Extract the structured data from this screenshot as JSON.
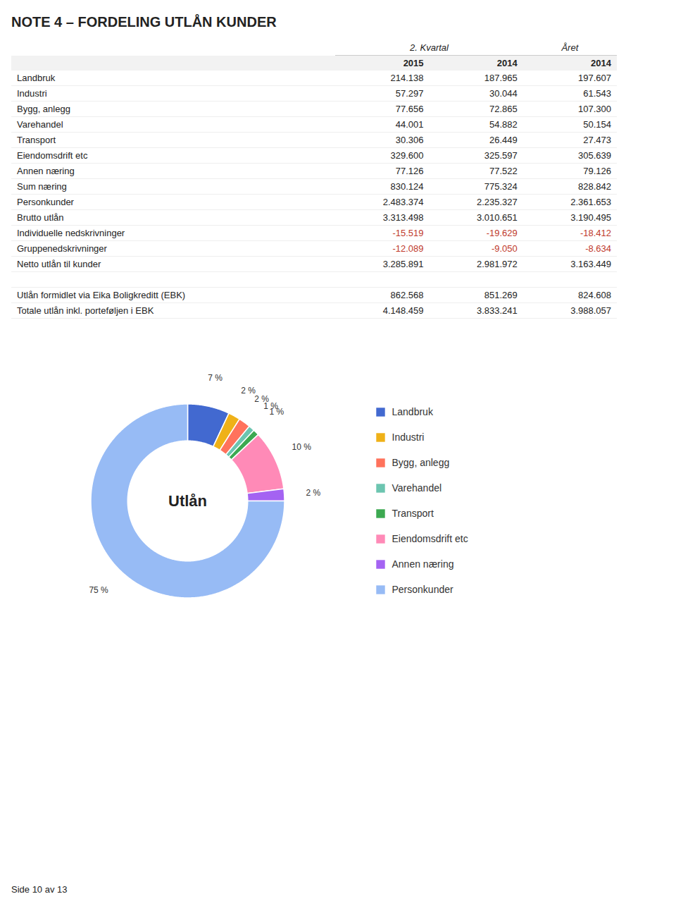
{
  "chart_data": [
    {
      "type": "table",
      "title": "NOTE 4 – FORDELING UTLÅN KUNDER",
      "categories": [
        "Landbruk",
        "Industri",
        "Bygg, anlegg",
        "Varehandel",
        "Transport",
        "Eiendomsdrift etc",
        "Annen næring",
        "Sum næring",
        "Personkunder",
        "Brutto utlån",
        "Individuelle nedskrivninger",
        "Gruppenedskrivninger",
        "Netto utlån til kunder",
        null,
        "Utlån formidlet via Eika Boligkreditt (EBK)",
        "Totale utlån inkl. porteføljen i EBK"
      ],
      "series": [
        {
          "name": "2015",
          "group": "2. Kvartal",
          "values": [
            214138,
            57297,
            77656,
            44001,
            30306,
            329600,
            77126,
            830124,
            2483374,
            3313498,
            -15519,
            -12089,
            3285891,
            null,
            862568,
            4148459
          ],
          "value_labels": [
            "214.138",
            "57.297",
            "77.656",
            "44.001",
            "30.306",
            "329.600",
            "77.126",
            "830.124",
            "2.483.374",
            "3.313.498",
            "-15.519",
            "-12.089",
            "3.285.891",
            null,
            "862.568",
            "4.148.459"
          ]
        },
        {
          "name": "2014",
          "group": "2. Kvartal",
          "values": [
            187965,
            30044,
            72865,
            54882,
            26449,
            325597,
            77522,
            775324,
            2235327,
            3010651,
            -19629,
            -9050,
            2981972,
            null,
            851269,
            3833241
          ],
          "value_labels": [
            "187.965",
            "30.044",
            "72.865",
            "54.882",
            "26.449",
            "325.597",
            "77.522",
            "775.324",
            "2.235.327",
            "3.010.651",
            "-19.629",
            "-9.050",
            "2.981.972",
            null,
            "851.269",
            "3.833.241"
          ]
        },
        {
          "name": "2014",
          "group": "Året",
          "values": [
            197607,
            61543,
            107300,
            50154,
            27473,
            305639,
            79126,
            828842,
            2361653,
            3190495,
            -18412,
            -8634,
            3163449,
            null,
            824608,
            3988057
          ],
          "value_labels": [
            "197.607",
            "61.543",
            "107.300",
            "50.154",
            "27.473",
            "305.639",
            "79.126",
            "828.842",
            "2.361.653",
            "3.190.495",
            "-18.412",
            "-8.634",
            "3.163.449",
            null,
            "824.608",
            "3.988.057"
          ]
        }
      ],
      "annotations": [
        "Side 10 av 13"
      ]
    },
    {
      "type": "pie",
      "title": "Utlån",
      "categories": [
        "Landbruk",
        "Industri",
        "Bygg, anlegg",
        "Varehandel",
        "Transport",
        "Eiendomsdrift etc",
        "Annen næring",
        "Personkunder"
      ],
      "values": [
        7,
        2,
        2,
        1,
        1,
        10,
        2,
        75
      ],
      "value_labels": [
        "7 %",
        "2 %",
        "2 %",
        "1 %",
        "1 %",
        "10 %",
        "2 %",
        "75 %"
      ],
      "data_labels": true,
      "legend": "right"
    }
  ]
}
